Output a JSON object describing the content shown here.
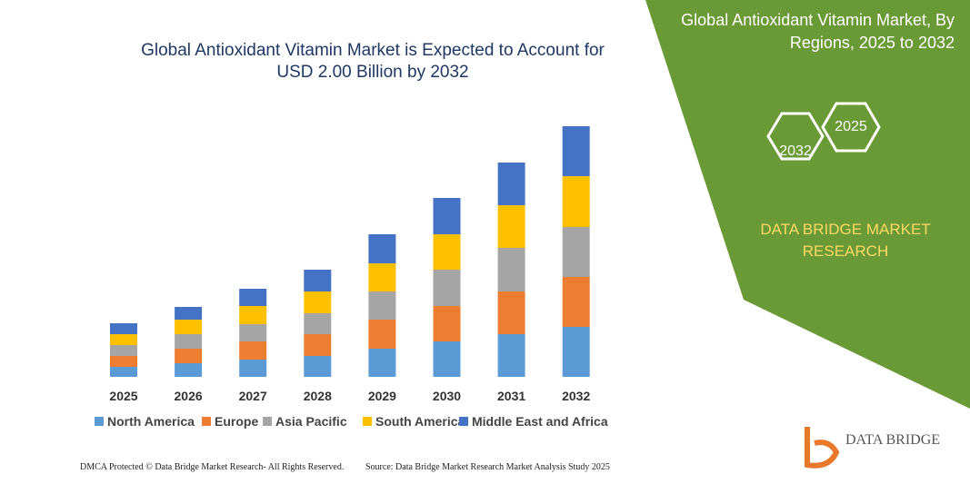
{
  "chart_data": {
    "type": "bar",
    "stacked": true,
    "title": "Global Antioxidant Vitamin Market is Expected to Account for USD 2.00 Billion by 2032",
    "categories": [
      "2025",
      "2026",
      "2027",
      "2028",
      "2029",
      "2030",
      "2031",
      "2032"
    ],
    "series": [
      {
        "name": "North America",
        "color": "#5b9bd5",
        "values": [
          11,
          15,
          19,
          23,
          31,
          39,
          47,
          55
        ]
      },
      {
        "name": "Europe",
        "color": "#ed7d31",
        "values": [
          12,
          16,
          20,
          24,
          32,
          39,
          47,
          55
        ]
      },
      {
        "name": "Asia Pacific",
        "color": "#a5a5a5",
        "values": [
          12,
          16,
          19,
          23,
          31,
          40,
          48,
          55
        ]
      },
      {
        "name": "South America",
        "color": "#ffc000",
        "values": [
          12,
          16,
          20,
          24,
          31,
          39,
          47,
          56
        ]
      },
      {
        "name": "Middle East and Africa",
        "color": "#4472c4",
        "values": [
          12,
          14,
          19,
          24,
          32,
          40,
          47,
          55
        ]
      }
    ]
  },
  "panel": {
    "title": "Global Antioxidant Vitamin Market, By Regions, 2025 to 2032",
    "hexagons": [
      "2032",
      "2025"
    ],
    "brand": "DATA BRIDGE MARKET RESEARCH"
  },
  "logo": "DATA BRIDGE",
  "footer": {
    "left": "DMCA Protected © Data Bridge Market Research- All Rights Reserved.",
    "right": "Source: Data Bridge Market Research Market Analysis Study 2025"
  }
}
